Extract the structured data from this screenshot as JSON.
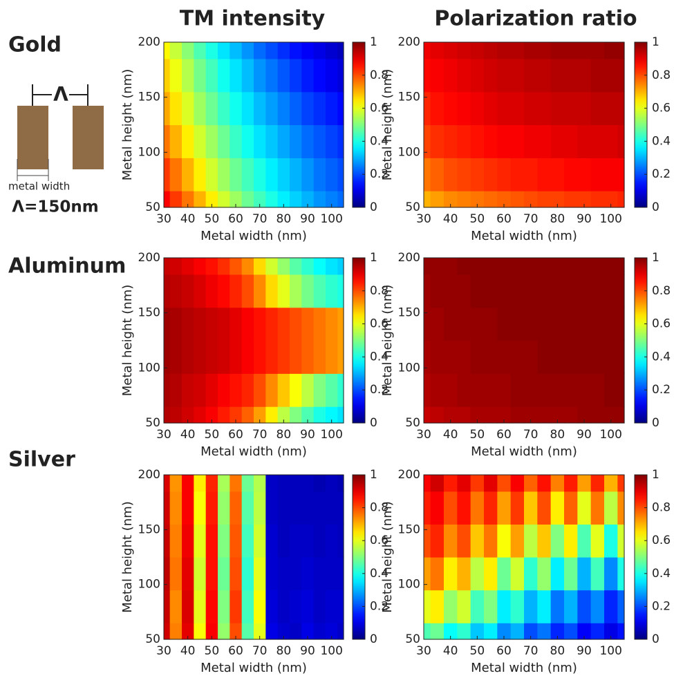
{
  "column_titles": [
    "TM intensity",
    "Polarization ratio"
  ],
  "row_labels": [
    "Gold",
    "Aluminum",
    "Silver"
  ],
  "diagram": {
    "period_symbol": "Λ",
    "width_label": "metal width",
    "period_label": "Λ=150nm"
  },
  "chart_data": [
    {
      "type": "heatmap",
      "xlabel": "Metal width (nm)",
      "ylabel": "Metal height (nm)",
      "colormap": "jet",
      "x": [
        30,
        35,
        40,
        45,
        50,
        55,
        60,
        65,
        70,
        75,
        80,
        85,
        90,
        95,
        100,
        105
      ],
      "y": [
        50,
        80,
        110,
        140,
        170,
        200
      ],
      "xlim": [
        30,
        105
      ],
      "ylim": [
        50,
        200
      ],
      "xticks": [
        30,
        40,
        50,
        60,
        70,
        80,
        90,
        100
      ],
      "yticks": [
        50,
        100,
        150,
        200
      ],
      "clim": [
        0,
        1
      ],
      "cticks": [
        0,
        0.2,
        0.4,
        0.6,
        0.8,
        1
      ],
      "values": [
        [
          0.88,
          0.82,
          0.76,
          0.7,
          0.64,
          0.58,
          0.53,
          0.48,
          0.44,
          0.4,
          0.36,
          0.33,
          0.3,
          0.27,
          0.25,
          0.23
        ],
        [
          0.82,
          0.76,
          0.7,
          0.64,
          0.58,
          0.53,
          0.48,
          0.44,
          0.4,
          0.36,
          0.33,
          0.3,
          0.27,
          0.24,
          0.22,
          0.2
        ],
        [
          0.76,
          0.7,
          0.64,
          0.58,
          0.53,
          0.48,
          0.43,
          0.39,
          0.35,
          0.32,
          0.29,
          0.26,
          0.23,
          0.21,
          0.19,
          0.17
        ],
        [
          0.71,
          0.65,
          0.59,
          0.53,
          0.48,
          0.43,
          0.39,
          0.35,
          0.31,
          0.28,
          0.25,
          0.22,
          0.19,
          0.17,
          0.15,
          0.13
        ],
        [
          0.67,
          0.61,
          0.55,
          0.49,
          0.44,
          0.39,
          0.35,
          0.31,
          0.27,
          0.24,
          0.21,
          0.18,
          0.15,
          0.13,
          0.11,
          0.09
        ],
        [
          0.63,
          0.57,
          0.51,
          0.45,
          0.4,
          0.35,
          0.31,
          0.27,
          0.23,
          0.2,
          0.17,
          0.14,
          0.12,
          0.1,
          0.08,
          0.06
        ]
      ]
    },
    {
      "type": "heatmap",
      "xlabel": "Metal width (nm)",
      "ylabel": "Metal height (nm)",
      "colormap": "jet",
      "x": [
        30,
        35,
        40,
        45,
        50,
        55,
        60,
        65,
        70,
        75,
        80,
        85,
        90,
        95,
        100,
        105
      ],
      "y": [
        50,
        80,
        110,
        140,
        170,
        200
      ],
      "xlim": [
        30,
        105
      ],
      "ylim": [
        50,
        200
      ],
      "xticks": [
        30,
        40,
        50,
        60,
        70,
        80,
        90,
        100
      ],
      "yticks": [
        50,
        100,
        150,
        200
      ],
      "clim": [
        0,
        1
      ],
      "cticks": [
        0,
        0.2,
        0.4,
        0.6,
        0.8,
        1
      ],
      "values": [
        [
          0.7,
          0.72,
          0.74,
          0.75,
          0.76,
          0.77,
          0.78,
          0.79,
          0.8,
          0.81,
          0.81,
          0.82,
          0.82,
          0.83,
          0.83,
          0.84
        ],
        [
          0.76,
          0.78,
          0.8,
          0.81,
          0.82,
          0.83,
          0.84,
          0.85,
          0.85,
          0.86,
          0.86,
          0.87,
          0.87,
          0.88,
          0.88,
          0.88
        ],
        [
          0.81,
          0.83,
          0.84,
          0.85,
          0.86,
          0.87,
          0.88,
          0.88,
          0.89,
          0.89,
          0.9,
          0.9,
          0.91,
          0.91,
          0.91,
          0.92
        ],
        [
          0.84,
          0.86,
          0.87,
          0.88,
          0.89,
          0.9,
          0.91,
          0.91,
          0.92,
          0.92,
          0.93,
          0.93,
          0.93,
          0.94,
          0.94,
          0.94
        ],
        [
          0.87,
          0.88,
          0.89,
          0.9,
          0.91,
          0.92,
          0.93,
          0.93,
          0.94,
          0.94,
          0.95,
          0.95,
          0.95,
          0.96,
          0.96,
          0.96
        ],
        [
          0.89,
          0.9,
          0.91,
          0.92,
          0.93,
          0.94,
          0.95,
          0.95,
          0.96,
          0.96,
          0.97,
          0.97,
          0.97,
          0.97,
          0.98,
          0.98
        ]
      ]
    },
    {
      "type": "heatmap",
      "xlabel": "Metal width (nm)",
      "ylabel": "Metal height (nm)",
      "colormap": "jet",
      "x": [
        30,
        35,
        40,
        45,
        50,
        55,
        60,
        65,
        70,
        75,
        80,
        85,
        90,
        95,
        100,
        105
      ],
      "y": [
        50,
        80,
        110,
        140,
        170,
        200
      ],
      "xlim": [
        30,
        105
      ],
      "ylim": [
        50,
        200
      ],
      "xticks": [
        30,
        40,
        50,
        60,
        70,
        80,
        90,
        100
      ],
      "yticks": [
        50,
        100,
        150,
        200
      ],
      "clim": [
        0,
        1
      ],
      "cticks": [
        0,
        0.2,
        0.4,
        0.6,
        0.8,
        1
      ],
      "values": [
        [
          0.95,
          0.94,
          0.92,
          0.9,
          0.88,
          0.85,
          0.82,
          0.78,
          0.72,
          0.64,
          0.56,
          0.5,
          0.45,
          0.4,
          0.37,
          0.35
        ],
        [
          0.96,
          0.95,
          0.93,
          0.92,
          0.9,
          0.88,
          0.86,
          0.84,
          0.8,
          0.74,
          0.68,
          0.62,
          0.56,
          0.5,
          0.46,
          0.42
        ],
        [
          0.97,
          0.96,
          0.95,
          0.94,
          0.93,
          0.92,
          0.9,
          0.88,
          0.86,
          0.84,
          0.82,
          0.8,
          0.78,
          0.76,
          0.74,
          0.72
        ],
        [
          0.97,
          0.96,
          0.95,
          0.94,
          0.93,
          0.92,
          0.9,
          0.88,
          0.86,
          0.84,
          0.82,
          0.8,
          0.78,
          0.76,
          0.74,
          0.72
        ],
        [
          0.95,
          0.94,
          0.93,
          0.91,
          0.89,
          0.87,
          0.84,
          0.8,
          0.74,
          0.66,
          0.6,
          0.54,
          0.49,
          0.45,
          0.42,
          0.4
        ],
        [
          0.93,
          0.92,
          0.9,
          0.88,
          0.86,
          0.83,
          0.79,
          0.74,
          0.66,
          0.58,
          0.52,
          0.46,
          0.42,
          0.38,
          0.35,
          0.33
        ]
      ]
    },
    {
      "type": "heatmap",
      "xlabel": "Metal width (nm)",
      "ylabel": "Metal height (nm)",
      "colormap": "jet",
      "x": [
        30,
        35,
        40,
        45,
        50,
        55,
        60,
        65,
        70,
        75,
        80,
        85,
        90,
        95,
        100,
        105
      ],
      "y": [
        50,
        80,
        110,
        140,
        170,
        200
      ],
      "xlim": [
        30,
        105
      ],
      "ylim": [
        50,
        200
      ],
      "xticks": [
        30,
        40,
        50,
        60,
        70,
        80,
        90,
        100
      ],
      "yticks": [
        50,
        100,
        150,
        200
      ],
      "clim": [
        0,
        1
      ],
      "cticks": [
        0,
        0.2,
        0.4,
        0.6,
        0.8,
        1
      ],
      "values": [
        [
          0.93,
          0.94,
          0.95,
          0.95,
          0.96,
          0.96,
          0.96,
          0.97,
          0.97,
          0.97,
          0.97,
          0.97,
          0.98,
          0.98,
          0.98,
          0.98
        ],
        [
          0.95,
          0.96,
          0.96,
          0.97,
          0.97,
          0.97,
          0.97,
          0.98,
          0.98,
          0.98,
          0.98,
          0.98,
          0.98,
          0.98,
          0.99,
          0.99
        ],
        [
          0.96,
          0.97,
          0.97,
          0.97,
          0.98,
          0.98,
          0.98,
          0.98,
          0.98,
          0.99,
          0.99,
          0.99,
          0.99,
          0.99,
          0.99,
          0.99
        ],
        [
          0.97,
          0.97,
          0.98,
          0.98,
          0.98,
          0.98,
          0.99,
          0.99,
          0.99,
          0.99,
          0.99,
          0.99,
          0.99,
          0.99,
          0.99,
          0.99
        ],
        [
          0.97,
          0.98,
          0.98,
          0.98,
          0.99,
          0.99,
          0.99,
          0.99,
          0.99,
          0.99,
          0.99,
          0.99,
          0.99,
          0.99,
          0.99,
          0.99
        ],
        [
          0.98,
          0.98,
          0.98,
          0.99,
          0.99,
          0.99,
          0.99,
          0.99,
          0.99,
          0.99,
          0.99,
          0.99,
          0.99,
          0.99,
          0.99,
          0.99
        ]
      ]
    },
    {
      "type": "heatmap",
      "xlabel": "Metal width (nm)",
      "ylabel": "Metal height (nm)",
      "colormap": "jet",
      "x": [
        30,
        35,
        40,
        45,
        50,
        55,
        60,
        65,
        70,
        75,
        80,
        85,
        90,
        95,
        100,
        105
      ],
      "y": [
        50,
        80,
        110,
        140,
        170,
        200
      ],
      "xlim": [
        30,
        105
      ],
      "ylim": [
        50,
        200
      ],
      "xticks": [
        30,
        40,
        50,
        60,
        70,
        80,
        90,
        100
      ],
      "yticks": [
        50,
        100,
        150,
        200
      ],
      "clim": [
        0,
        1
      ],
      "cticks": [
        0,
        0.2,
        0.4,
        0.6,
        0.8,
        1
      ],
      "values": [
        [
          0.92,
          0.75,
          0.9,
          0.62,
          0.88,
          0.52,
          0.8,
          0.46,
          0.6,
          0.1,
          0.08,
          0.07,
          0.1,
          0.08,
          0.09,
          0.07
        ],
        [
          0.93,
          0.74,
          0.91,
          0.6,
          0.87,
          0.5,
          0.82,
          0.44,
          0.62,
          0.09,
          0.07,
          0.08,
          0.09,
          0.07,
          0.08,
          0.08
        ],
        [
          0.94,
          0.76,
          0.9,
          0.58,
          0.86,
          0.48,
          0.8,
          0.42,
          0.6,
          0.08,
          0.07,
          0.07,
          0.08,
          0.07,
          0.07,
          0.07
        ],
        [
          0.93,
          0.75,
          0.89,
          0.6,
          0.86,
          0.5,
          0.79,
          0.44,
          0.58,
          0.08,
          0.06,
          0.07,
          0.07,
          0.06,
          0.07,
          0.06
        ],
        [
          0.92,
          0.74,
          0.88,
          0.62,
          0.85,
          0.52,
          0.78,
          0.46,
          0.56,
          0.07,
          0.06,
          0.06,
          0.06,
          0.06,
          0.06,
          0.06
        ],
        [
          0.91,
          0.73,
          0.88,
          0.64,
          0.84,
          0.54,
          0.76,
          0.48,
          0.55,
          0.07,
          0.06,
          0.06,
          0.06,
          0.05,
          0.06,
          0.05
        ]
      ]
    },
    {
      "type": "heatmap",
      "xlabel": "Metal width (nm)",
      "ylabel": "Metal height (nm)",
      "colormap": "jet",
      "x": [
        30,
        35,
        40,
        45,
        50,
        55,
        60,
        65,
        70,
        75,
        80,
        85,
        90,
        95,
        100,
        105
      ],
      "y": [
        50,
        80,
        110,
        140,
        170,
        200
      ],
      "xlim": [
        30,
        105
      ],
      "ylim": [
        50,
        200
      ],
      "xticks": [
        30,
        40,
        50,
        60,
        70,
        80,
        90,
        100
      ],
      "yticks": [
        50,
        100,
        150,
        200
      ],
      "clim": [
        0,
        1
      ],
      "cticks": [
        0,
        0.2,
        0.4,
        0.6,
        0.8,
        1
      ],
      "values": [
        [
          0.45,
          0.48,
          0.38,
          0.42,
          0.32,
          0.36,
          0.26,
          0.3,
          0.2,
          0.24,
          0.16,
          0.2,
          0.12,
          0.16,
          0.1,
          0.14
        ],
        [
          0.6,
          0.64,
          0.52,
          0.58,
          0.44,
          0.5,
          0.36,
          0.42,
          0.3,
          0.36,
          0.24,
          0.3,
          0.2,
          0.26,
          0.16,
          0.22
        ],
        [
          0.72,
          0.76,
          0.64,
          0.7,
          0.56,
          0.64,
          0.48,
          0.58,
          0.42,
          0.52,
          0.36,
          0.48,
          0.3,
          0.44,
          0.26,
          0.4
        ],
        [
          0.8,
          0.84,
          0.74,
          0.8,
          0.68,
          0.76,
          0.62,
          0.72,
          0.56,
          0.68,
          0.5,
          0.64,
          0.45,
          0.6,
          0.4,
          0.58
        ],
        [
          0.85,
          0.88,
          0.8,
          0.86,
          0.76,
          0.84,
          0.72,
          0.82,
          0.68,
          0.8,
          0.64,
          0.78,
          0.6,
          0.76,
          0.56,
          0.74
        ],
        [
          0.88,
          0.92,
          0.85,
          0.9,
          0.82,
          0.9,
          0.8,
          0.88,
          0.78,
          0.86,
          0.75,
          0.85,
          0.72,
          0.84,
          0.7,
          0.82
        ]
      ]
    }
  ]
}
